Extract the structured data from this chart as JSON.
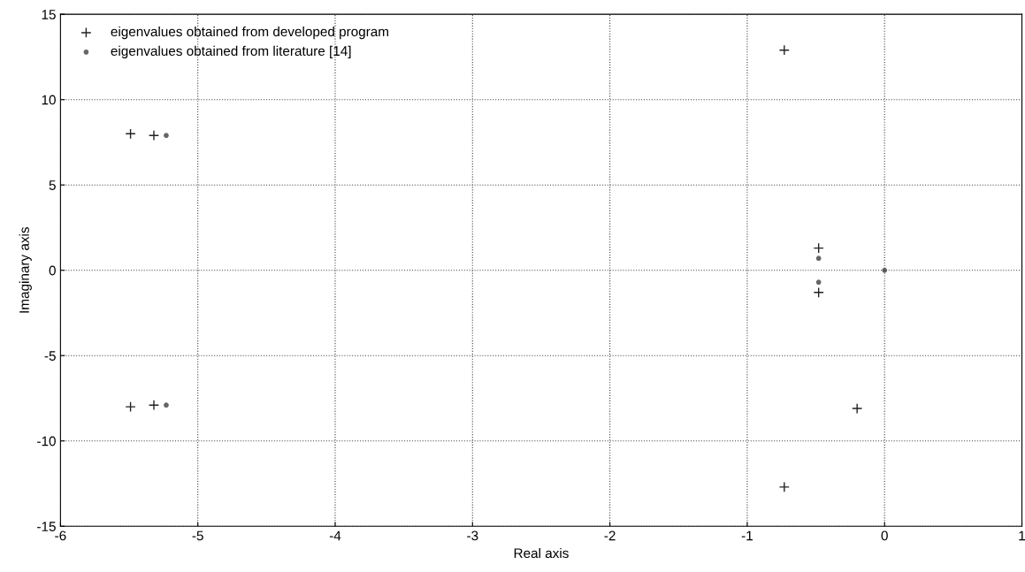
{
  "chart_data": {
    "type": "scatter",
    "xlabel": "Real axis",
    "ylabel": "Imaginary axis",
    "xlim": [
      -6,
      1
    ],
    "xticks": [
      -6,
      -5,
      -4,
      -3,
      -2,
      -1,
      0,
      1
    ],
    "ylim": [
      -15,
      15
    ],
    "yticks": [
      -15,
      -10,
      -5,
      0,
      5,
      10,
      15
    ],
    "grid": true,
    "legend": "top left",
    "series": [
      {
        "name": "eigenvalues obtained from developed program",
        "color": "#222222",
        "marker": "cross",
        "x": [
          -5.49,
          -5.49,
          -5.32,
          -5.32,
          -0.73,
          -0.73,
          -0.48,
          -0.48,
          -0.2
        ],
        "values": [
          8.0,
          -8.0,
          7.9,
          -7.9,
          12.9,
          -12.7,
          1.3,
          -1.3,
          -8.1
        ]
      },
      {
        "name": "eigenvalues obtained from literature [14]",
        "color": "#666666",
        "marker": "circle",
        "x": [
          -5.23,
          -5.23,
          -0.48,
          -0.48,
          0
        ],
        "values": [
          7.9,
          -7.9,
          0.7,
          -0.7,
          0
        ]
      }
    ]
  }
}
